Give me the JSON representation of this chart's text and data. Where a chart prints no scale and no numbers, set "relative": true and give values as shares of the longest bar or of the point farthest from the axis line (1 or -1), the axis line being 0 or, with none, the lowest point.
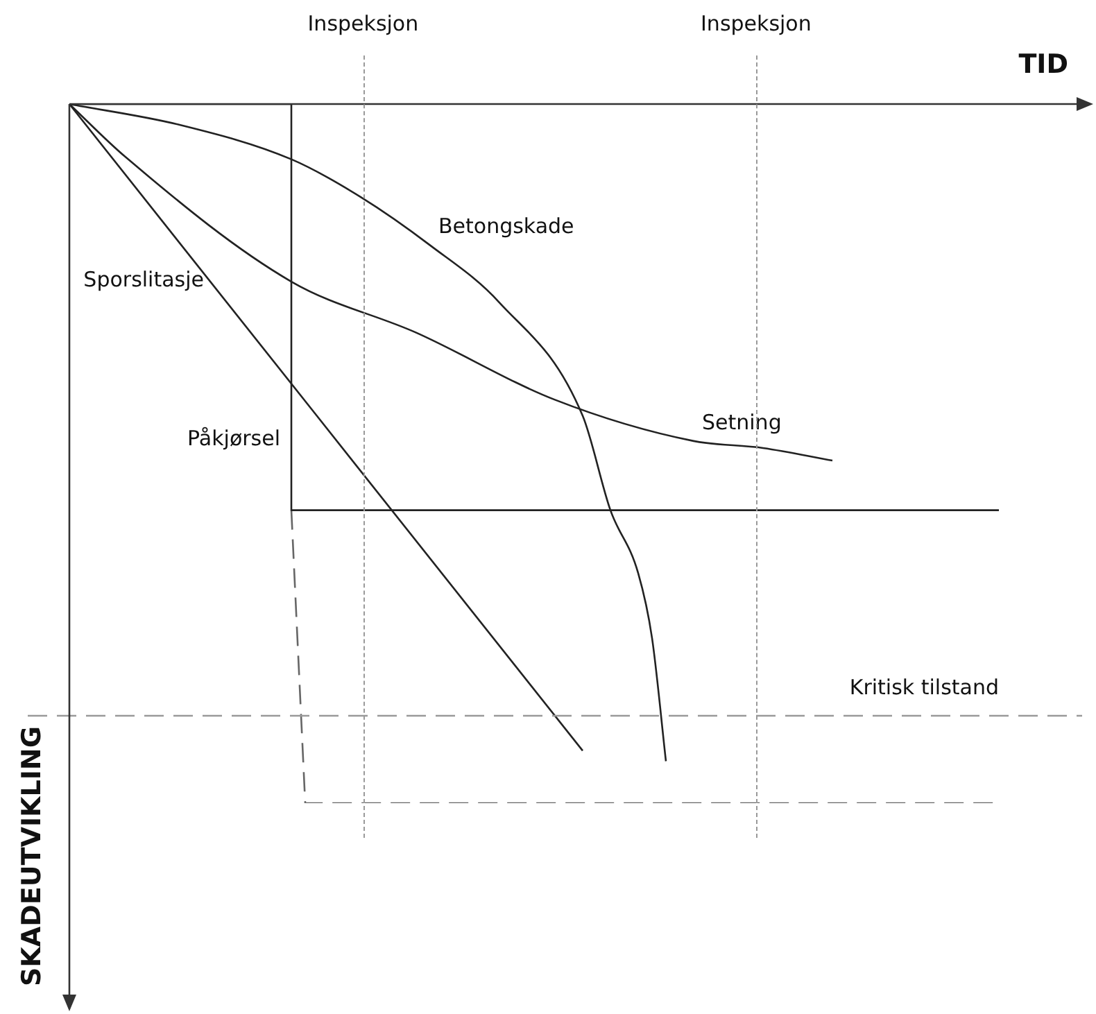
{
  "chart_data": {
    "type": "line",
    "relative": true,
    "xlabel": "TID",
    "ylabel": "SKADEUTVIKLING",
    "legend": false,
    "grid": false,
    "marker": "none",
    "line_style": "solid",
    "categories": [
      null,
      null,
      null,
      null,
      null,
      null,
      null,
      null,
      null,
      null,
      null,
      null,
      null,
      null,
      null,
      null,
      null,
      null,
      null,
      null,
      null,
      null,
      null,
      null,
      null,
      null,
      null,
      null,
      null,
      null,
      null,
      null,
      null,
      null,
      null,
      null,
      null,
      null,
      null,
      null,
      null,
      null,
      null,
      null,
      null,
      null,
      null,
      null,
      null,
      null,
      null,
      null,
      null,
      null,
      null,
      null,
      null,
      null,
      null,
      null,
      null,
      null,
      null,
      null,
      null,
      null,
      null,
      null,
      null,
      null,
      null,
      null,
      null,
      null
    ],
    "series": [
      {
        "name": "Betongskade",
        "color": "#222222",
        "values": [
          0,
          null,
          null,
          null,
          null,
          null,
          null,
          null,
          -0.03,
          null,
          null,
          null,
          null,
          null,
          null,
          null,
          -0.079,
          null,
          null,
          null,
          null,
          -0.133,
          null,
          null,
          null,
          null,
          -0.202,
          null,
          null,
          null,
          null,
          -0.284,
          null,
          null,
          null,
          null,
          null,
          -0.446,
          null,
          -0.581,
          null,
          -0.671,
          -0.764,
          -0.94,
          null,
          null,
          null,
          null,
          null,
          null,
          null,
          null,
          null,
          null,
          null,
          null,
          null,
          null,
          null,
          null,
          null,
          null,
          null,
          null,
          null,
          null,
          null,
          null,
          null,
          null,
          null,
          null,
          null,
          null
        ]
      },
      {
        "name": "Sporslitasje",
        "color": "#222222",
        "values": [
          0,
          null,
          null,
          null,
          null,
          null,
          null,
          null,
          null,
          null,
          null,
          null,
          null,
          null,
          null,
          null,
          null,
          null,
          null,
          null,
          null,
          null,
          null,
          null,
          null,
          null,
          null,
          null,
          null,
          null,
          null,
          null,
          null,
          null,
          null,
          null,
          null,
          -0.925,
          null,
          null,
          null,
          null,
          null,
          null,
          null,
          null,
          null,
          null,
          null,
          null,
          null,
          null,
          null,
          null,
          null,
          null,
          null,
          null,
          null,
          null,
          null,
          null,
          null,
          null,
          null,
          null,
          null,
          null,
          null,
          null,
          null,
          null,
          null,
          null
        ]
      },
      {
        "name": "Setning",
        "color": "#222222",
        "values": [
          0,
          null,
          null,
          null,
          -0.075,
          null,
          null,
          null,
          null,
          null,
          null,
          null,
          null,
          null,
          null,
          null,
          -0.254,
          null,
          null,
          null,
          null,
          null,
          null,
          null,
          null,
          -0.327,
          null,
          null,
          null,
          null,
          null,
          null,
          null,
          null,
          null,
          -0.423,
          null,
          null,
          null,
          null,
          null,
          null,
          null,
          null,
          null,
          -0.482,
          null,
          null,
          null,
          null,
          -0.492,
          null,
          null,
          null,
          null,
          -0.51,
          null,
          null,
          null,
          null,
          null,
          null,
          null,
          null,
          null,
          null,
          null,
          null,
          null,
          null,
          null,
          null,
          null,
          null
        ]
      },
      {
        "name": "Påkjørsel",
        "type": "step",
        "color": "#222222",
        "values": [
          0,
          null,
          null,
          null,
          null,
          null,
          null,
          null,
          null,
          null,
          null,
          null,
          null,
          null,
          null,
          null,
          -0.581,
          null,
          null,
          null,
          null,
          null,
          null,
          null,
          null,
          null,
          null,
          null,
          null,
          null,
          null,
          null,
          null,
          null,
          null,
          null,
          null,
          null,
          null,
          null,
          null,
          null,
          null,
          null,
          null,
          null,
          null,
          null,
          null,
          null,
          null,
          null,
          null,
          null,
          null,
          null,
          null,
          null,
          null,
          null,
          null,
          null,
          null,
          null,
          null,
          null,
          null,
          -0.581,
          null,
          null,
          null,
          null,
          null,
          null
        ]
      },
      {
        "color": "#666666",
        "line_style": "dashed",
        "values": [
          null,
          null,
          null,
          null,
          null,
          null,
          null,
          null,
          null,
          null,
          null,
          null,
          null,
          null,
          null,
          null,
          -0.581,
          -1,
          null,
          null,
          null,
          null,
          null,
          null,
          null,
          null,
          null,
          null,
          null,
          null,
          null,
          null,
          null,
          null,
          null,
          null,
          null,
          null,
          null,
          null,
          null,
          null,
          null,
          null,
          null,
          null,
          null,
          null,
          null,
          null,
          null,
          null,
          null,
          null,
          null,
          null,
          null,
          null,
          null,
          null,
          null,
          null,
          null,
          null,
          null,
          null,
          null,
          -1,
          null,
          null,
          null,
          null,
          null,
          null
        ]
      }
    ],
    "annotations": [
      "Inspeksjon",
      "Inspeksjon"
    ],
    "ref_lines": [
      {
        "axis": "y",
        "value": -0.875,
        "label": "Kritisk tilstand",
        "color": "#999999",
        "line_style": "dashed"
      }
    ]
  }
}
